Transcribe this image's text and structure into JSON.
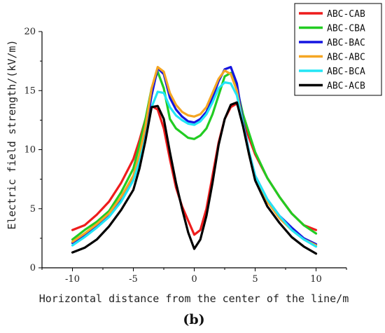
{
  "chart_data": {
    "type": "line",
    "title": "",
    "caption": "(b)",
    "xlabel": "Horizontal distance from the center of the line/m",
    "ylabel": "Electric field strength/(kV/m)",
    "xlim": [
      -12.5,
      12.5
    ],
    "ylim": [
      0,
      20
    ],
    "xticks": [
      "-10",
      "-5",
      "0",
      "5",
      "10"
    ],
    "yticks": [
      "0",
      "5",
      "10",
      "15",
      "20"
    ],
    "grid": false,
    "legend_position": "top-right",
    "x": [
      -10,
      -9,
      -8,
      -7,
      -6,
      -5,
      -4.5,
      -4,
      -3.5,
      -3,
      -2.5,
      -2,
      -1.5,
      -1,
      -0.5,
      0,
      0.5,
      1,
      1.5,
      2,
      2.5,
      3,
      3.5,
      4,
      4.5,
      5,
      6,
      7,
      8,
      9,
      10
    ],
    "series": [
      {
        "name": "ABC-CAB",
        "color": "#ee1c1c",
        "values": [
          3.2,
          3.6,
          4.5,
          5.6,
          7.2,
          9.2,
          10.8,
          12.6,
          13.7,
          13.4,
          11.8,
          9.2,
          6.8,
          5.2,
          4.0,
          2.8,
          3.2,
          5.0,
          7.8,
          10.6,
          12.6,
          13.6,
          13.9,
          12.6,
          11.0,
          9.6,
          7.6,
          6.0,
          4.6,
          3.6,
          3.2
        ]
      },
      {
        "name": "ABC-CBA",
        "color": "#22cc22",
        "values": [
          2.4,
          3.2,
          3.9,
          4.8,
          6.4,
          8.4,
          10.4,
          12.6,
          15.2,
          16.6,
          15.2,
          12.6,
          11.8,
          11.4,
          11.0,
          10.9,
          11.2,
          11.8,
          13.0,
          14.6,
          16.2,
          16.5,
          15.2,
          13.0,
          11.4,
          9.8,
          7.6,
          6.0,
          4.6,
          3.6,
          2.9
        ]
      },
      {
        "name": "ABC-BAC",
        "color": "#1414e0",
        "values": [
          2.1,
          2.8,
          3.6,
          4.4,
          5.8,
          7.6,
          9.2,
          11.6,
          14.6,
          16.9,
          16.4,
          14.4,
          13.4,
          12.8,
          12.4,
          12.3,
          12.6,
          13.2,
          14.4,
          15.8,
          16.8,
          17.0,
          15.6,
          12.4,
          9.8,
          7.8,
          5.8,
          4.4,
          3.4,
          2.5,
          2.0
        ]
      },
      {
        "name": "ABC-ABC",
        "color": "#f5a623",
        "values": [
          2.2,
          2.9,
          3.7,
          4.6,
          6.0,
          7.8,
          9.6,
          12.0,
          15.2,
          17.0,
          16.6,
          14.8,
          13.8,
          13.2,
          12.9,
          12.8,
          13.0,
          13.6,
          14.8,
          16.0,
          16.7,
          16.4,
          15.0,
          12.2,
          9.6,
          7.6,
          5.6,
          4.2,
          3.2,
          2.4,
          1.9
        ]
      },
      {
        "name": "ABC-BCA",
        "color": "#22e5f5",
        "values": [
          1.9,
          2.6,
          3.4,
          4.3,
          5.6,
          7.4,
          9.0,
          11.0,
          13.6,
          14.9,
          14.8,
          13.6,
          12.9,
          12.5,
          12.2,
          12.1,
          12.4,
          13.0,
          14.0,
          15.2,
          15.7,
          15.6,
          14.6,
          12.2,
          9.8,
          7.8,
          5.8,
          4.4,
          3.2,
          2.4,
          1.8
        ]
      },
      {
        "name": "ABC-ACB",
        "color": "#000000",
        "values": [
          1.3,
          1.7,
          2.4,
          3.5,
          4.9,
          6.6,
          8.4,
          10.8,
          13.6,
          13.7,
          12.6,
          9.8,
          7.2,
          5.0,
          3.0,
          1.6,
          2.4,
          4.4,
          7.2,
          10.4,
          12.6,
          13.8,
          14.0,
          12.0,
          9.6,
          7.4,
          5.2,
          3.8,
          2.6,
          1.8,
          1.2
        ]
      }
    ]
  }
}
